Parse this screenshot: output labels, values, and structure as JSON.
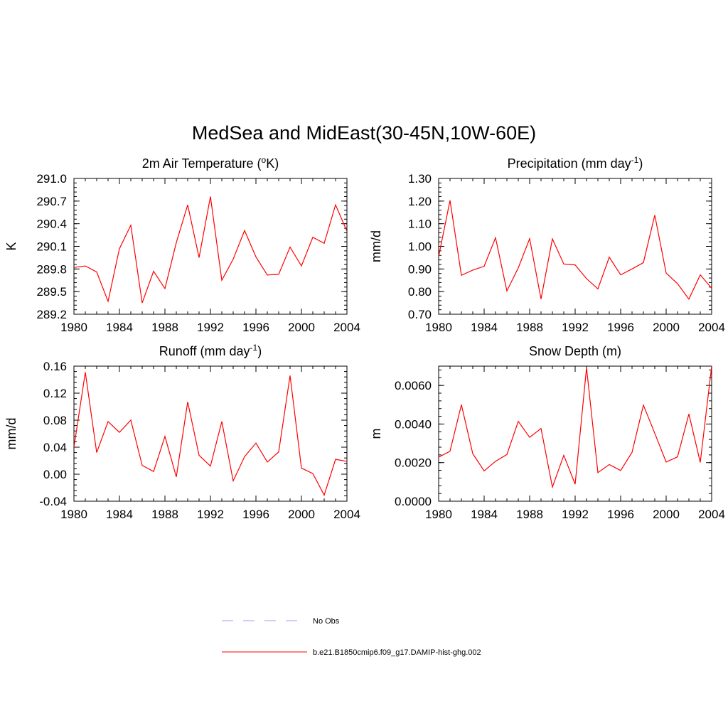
{
  "figure": {
    "title": "MedSea and MidEast(30-45N,10W-60E)"
  },
  "legend": {
    "entries": [
      {
        "label": "No Obs",
        "color": "#9999ff",
        "style": "dashed"
      },
      {
        "label": "b.e21.B1850cmip6.f09_g17.DAMIP-hist-ghg.002",
        "color": "#ff0000",
        "style": "solid"
      }
    ]
  },
  "chart_data": [
    {
      "type": "line",
      "title": "2m Air Temperature (",
      "title_sup": "o",
      "title_after": "K)",
      "ylabel": "K",
      "xlim": [
        1980,
        2004
      ],
      "ylim": [
        289.2,
        291.0
      ],
      "xticks": [
        1980,
        1984,
        1988,
        1992,
        1996,
        2000,
        2004
      ],
      "yticks": [
        "289.2",
        "289.5",
        "289.8",
        "290.1",
        "290.4",
        "290.7",
        "291.0"
      ],
      "x": [
        1980,
        1981,
        1982,
        1983,
        1984,
        1985,
        1986,
        1987,
        1988,
        1989,
        1990,
        1991,
        1992,
        1993,
        1994,
        1995,
        1996,
        1997,
        1998,
        1999,
        2000,
        2001,
        2002,
        2003,
        2004
      ],
      "series": [
        {
          "color": "#ff0000",
          "values": [
            289.82,
            289.84,
            289.76,
            289.37,
            290.07,
            290.38,
            289.35,
            289.77,
            289.54,
            290.15,
            290.65,
            289.95,
            290.76,
            289.65,
            289.93,
            290.31,
            289.96,
            289.72,
            289.73,
            290.09,
            289.84,
            290.22,
            290.14,
            290.65,
            290.3
          ]
        }
      ]
    },
    {
      "type": "line",
      "title": "Precipitation (mm day",
      "title_sup": "-1",
      "title_after": ")",
      "ylabel": "mm/d",
      "xlim": [
        1980,
        2004
      ],
      "ylim": [
        0.7,
        1.3
      ],
      "xticks": [
        1980,
        1984,
        1988,
        1992,
        1996,
        2000,
        2004
      ],
      "yticks": [
        "0.70",
        "0.80",
        "0.90",
        "1.00",
        "1.10",
        "1.20",
        "1.30"
      ],
      "x": [
        1980,
        1981,
        1982,
        1983,
        1984,
        1985,
        1986,
        1987,
        1988,
        1989,
        1990,
        1991,
        1992,
        1993,
        1994,
        1995,
        1996,
        1997,
        1998,
        1999,
        2000,
        2001,
        2002,
        2003,
        2004
      ],
      "series": [
        {
          "color": "#ff0000",
          "values": [
            0.955,
            1.203,
            0.872,
            0.895,
            0.912,
            1.038,
            0.803,
            0.905,
            1.034,
            0.767,
            1.033,
            0.922,
            0.918,
            0.857,
            0.812,
            0.952,
            0.874,
            0.9,
            0.928,
            1.138,
            0.882,
            0.835,
            0.767,
            0.874,
            0.815
          ]
        }
      ]
    },
    {
      "type": "line",
      "title": "Runoff (mm day",
      "title_sup": "-1",
      "title_after": ")",
      "ylabel": "mm/d",
      "xlim": [
        1980,
        2004
      ],
      "ylim": [
        -0.04,
        0.16
      ],
      "xticks": [
        1980,
        1984,
        1988,
        1992,
        1996,
        2000,
        2004
      ],
      "yticks": [
        "-0.04",
        "0.00",
        "0.04",
        "0.08",
        "0.12",
        "0.16"
      ],
      "x": [
        1980,
        1981,
        1982,
        1983,
        1984,
        1985,
        1986,
        1987,
        1988,
        1989,
        1990,
        1991,
        1992,
        1993,
        1994,
        1995,
        1996,
        1997,
        1998,
        1999,
        2000,
        2001,
        2002,
        2003,
        2004
      ],
      "series": [
        {
          "color": "#ff0000",
          "values": [
            0.04,
            0.151,
            0.032,
            0.078,
            0.062,
            0.08,
            0.013,
            0.004,
            0.056,
            -0.004,
            0.107,
            0.028,
            0.012,
            0.078,
            -0.01,
            0.026,
            0.046,
            0.018,
            0.033,
            0.146,
            0.009,
            0.001,
            -0.031,
            0.022,
            0.019
          ]
        }
      ]
    },
    {
      "type": "line",
      "title": "Snow Depth (m)",
      "title_sup": "",
      "title_after": "",
      "ylabel": "m",
      "xlim": [
        1980,
        2004
      ],
      "ylim": [
        0.0,
        0.007
      ],
      "xticks": [
        1980,
        1984,
        1988,
        1992,
        1996,
        2000,
        2004
      ],
      "yticks": [
        "0.0000",
        "0.0020",
        "0.0040",
        "0.0060"
      ],
      "ytick_values": [
        0.0,
        0.002,
        0.004,
        0.006
      ],
      "x": [
        1980,
        1981,
        1982,
        1983,
        1984,
        1985,
        1986,
        1987,
        1988,
        1989,
        1990,
        1991,
        1992,
        1993,
        1994,
        1995,
        1996,
        1997,
        1998,
        1999,
        2000,
        2001,
        2002,
        2003,
        2004
      ],
      "series": [
        {
          "color": "#ff0000",
          "values": [
            0.00228,
            0.00259,
            0.005,
            0.00246,
            0.00157,
            0.00207,
            0.00242,
            0.00414,
            0.00331,
            0.00377,
            0.00073,
            0.00238,
            0.00088,
            0.00692,
            0.00148,
            0.0019,
            0.00159,
            0.00253,
            0.00498,
            0.00352,
            0.00203,
            0.0023,
            0.00452,
            0.00201,
            0.007
          ]
        }
      ]
    }
  ]
}
